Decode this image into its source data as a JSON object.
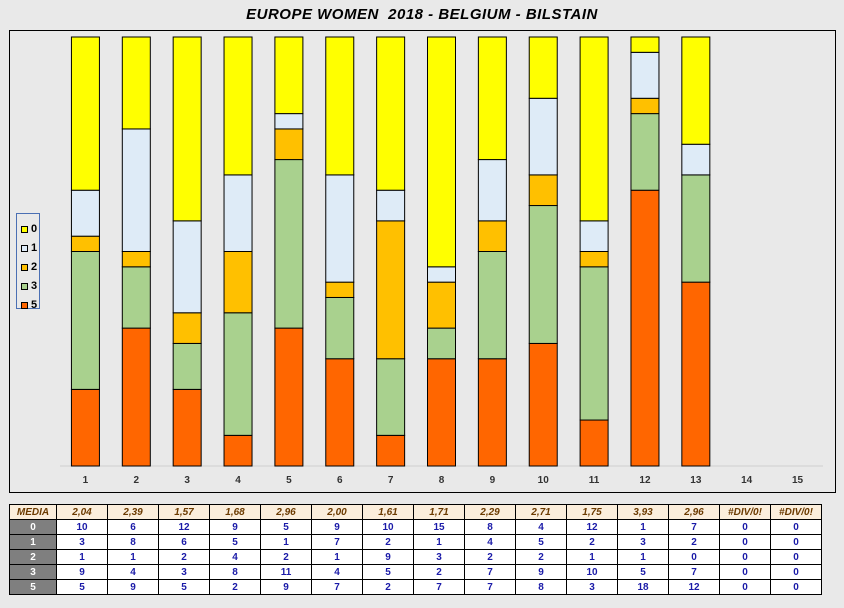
{
  "title": "EUROPE WOMEN  2018 - BELGIUM - BILSTAIN",
  "chart_data": {
    "type": "bar",
    "stacked": true,
    "categories": [
      "1",
      "2",
      "3",
      "4",
      "5",
      "6",
      "7",
      "8",
      "9",
      "10",
      "11",
      "12",
      "13",
      "14",
      "15"
    ],
    "series": [
      {
        "name": "5",
        "color": "#ff6600",
        "values": [
          5,
          9,
          5,
          2,
          9,
          7,
          2,
          7,
          7,
          8,
          3,
          18,
          12,
          0,
          0
        ]
      },
      {
        "name": "3",
        "color": "#a9d18e",
        "values": [
          9,
          4,
          3,
          8,
          11,
          4,
          5,
          2,
          7,
          9,
          10,
          5,
          7,
          0,
          0
        ]
      },
      {
        "name": "2",
        "color": "#ffc000",
        "values": [
          1,
          1,
          2,
          4,
          2,
          1,
          9,
          3,
          2,
          2,
          1,
          1,
          0,
          0,
          0
        ]
      },
      {
        "name": "1",
        "color": "#deebf7",
        "values": [
          3,
          8,
          6,
          5,
          1,
          7,
          2,
          1,
          4,
          5,
          2,
          3,
          2,
          0,
          0
        ]
      },
      {
        "name": "0",
        "color": "#ffff00",
        "values": [
          10,
          6,
          12,
          9,
          5,
          9,
          10,
          15,
          8,
          4,
          12,
          1,
          7,
          0,
          0
        ]
      }
    ],
    "legend": {
      "position": "left",
      "order": [
        "0",
        "1",
        "2",
        "3",
        "5"
      ]
    },
    "grid": false
  },
  "table": {
    "media_label": "MEDIA",
    "media": [
      "2,04",
      "2,39",
      "1,57",
      "1,68",
      "2,96",
      "2,00",
      "1,61",
      "1,71",
      "2,29",
      "2,71",
      "1,75",
      "3,93",
      "2,96",
      "#DIV/0!",
      "#DIV/0!"
    ],
    "rows": [
      {
        "label": "0",
        "values": [
          "10",
          "6",
          "12",
          "9",
          "5",
          "9",
          "10",
          "15",
          "8",
          "4",
          "12",
          "1",
          "7",
          "0",
          "0"
        ]
      },
      {
        "label": "1",
        "values": [
          "3",
          "8",
          "6",
          "5",
          "1",
          "7",
          "2",
          "1",
          "4",
          "5",
          "2",
          "3",
          "2",
          "0",
          "0"
        ]
      },
      {
        "label": "2",
        "values": [
          "1",
          "1",
          "2",
          "4",
          "2",
          "1",
          "9",
          "3",
          "2",
          "2",
          "1",
          "1",
          "0",
          "0",
          "0"
        ]
      },
      {
        "label": "3",
        "values": [
          "9",
          "4",
          "3",
          "8",
          "11",
          "4",
          "5",
          "2",
          "7",
          "9",
          "10",
          "5",
          "7",
          "0",
          "0"
        ]
      },
      {
        "label": "5",
        "values": [
          "5",
          "9",
          "5",
          "2",
          "9",
          "7",
          "2",
          "7",
          "7",
          "8",
          "3",
          "18",
          "12",
          "0",
          "0"
        ]
      }
    ]
  }
}
